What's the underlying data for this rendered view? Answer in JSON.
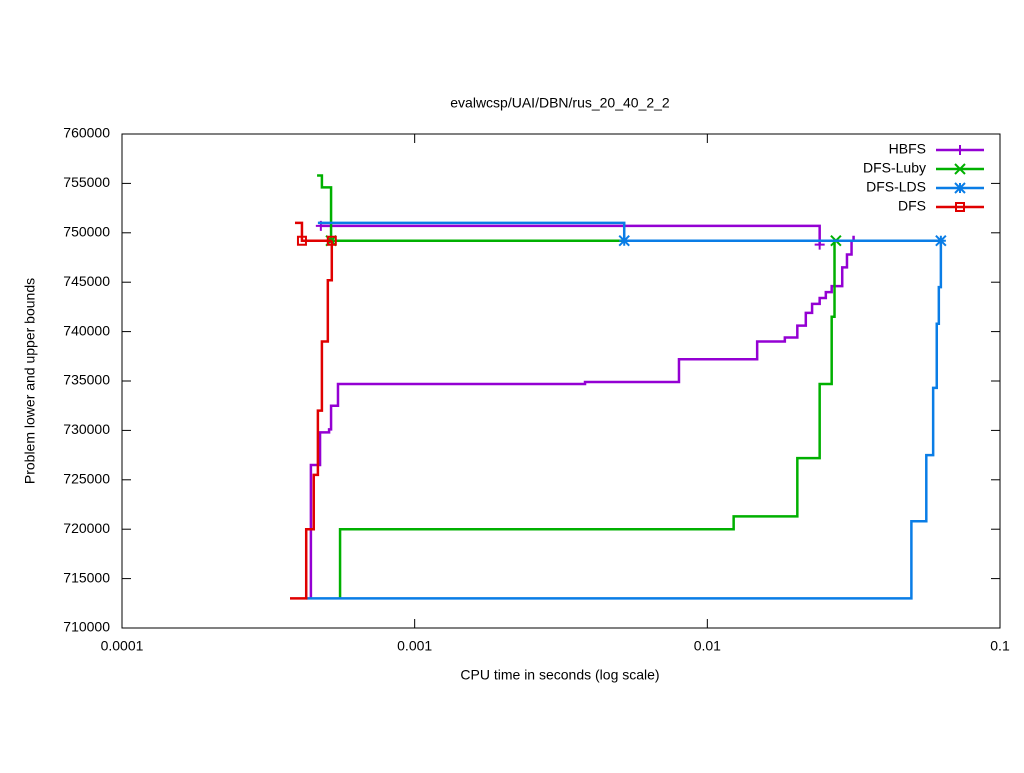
{
  "chart_data": {
    "type": "step",
    "title": "evalwcsp/UAI/DBN/rus_20_40_2_2",
    "xlabel": "CPU time in seconds (log scale)",
    "ylabel": "Problem lower and upper bounds",
    "xscale": "log",
    "xlim": [
      0.0001,
      0.1
    ],
    "xticks": [
      0.0001,
      0.001,
      0.01,
      0.1
    ],
    "ylim": [
      710000,
      760000
    ],
    "yticks": [
      710000,
      715000,
      720000,
      725000,
      730000,
      735000,
      740000,
      745000,
      750000,
      755000,
      760000
    ],
    "legend": "top-right",
    "series": [
      {
        "name": "HBFS",
        "color": "#9400d3",
        "marker": "plus",
        "x": [
          0.000442,
          0.000442,
          0.000475,
          0.00051,
          0.000518,
          0.000547,
          0.00382,
          0.008,
          0.0148,
          0.0184,
          0.0203,
          0.0217,
          0.0228,
          0.0242,
          0.0254,
          0.0266,
          0.0289,
          0.03,
          0.0311,
          0.0316,
          null,
          0.000478,
          0.0242
        ],
        "values": [
          713000,
          726500,
          729800,
          730100,
          732500,
          734700,
          734900,
          737200,
          739000,
          739400,
          740600,
          741900,
          742800,
          743400,
          744000,
          744600,
          746500,
          747800,
          749200,
          749700,
          null,
          750700,
          748800
        ]
      },
      {
        "name": "DFS-Luby",
        "color": "#00b000",
        "marker": "cross",
        "x": [
          0.000556,
          0.000556,
          0.0123,
          0.0203,
          0.0242,
          0.0266,
          0.0272,
          null,
          0.000464,
          0.000482,
          0.000518,
          0.0275
        ],
        "values": [
          713000,
          720000,
          721300,
          727200,
          734700,
          741500,
          749200,
          null,
          755800,
          754600,
          749200,
          749200
        ]
      },
      {
        "name": "DFS-LDS",
        "color": "#0a7de6",
        "marker": "star",
        "x": [
          0.000426,
          0.0498,
          0.056,
          0.0591,
          0.0608,
          0.0618,
          0.0628,
          null,
          0.000467,
          0.0052,
          0.0628
        ],
        "values": [
          713000,
          720800,
          727500,
          734300,
          740800,
          744500,
          749200,
          null,
          751000,
          749200,
          749200
        ]
      },
      {
        "name": "DFS",
        "color": "#e00000",
        "marker": "square",
        "x": [
          0.000375,
          0.000426,
          0.000452,
          0.000467,
          0.000482,
          0.000505,
          0.000521,
          null,
          0.00039,
          0.000412,
          0.000521
        ],
        "values": [
          713000,
          720000,
          725500,
          732000,
          739000,
          745200,
          749200,
          null,
          751000,
          749200,
          749200
        ]
      }
    ]
  }
}
